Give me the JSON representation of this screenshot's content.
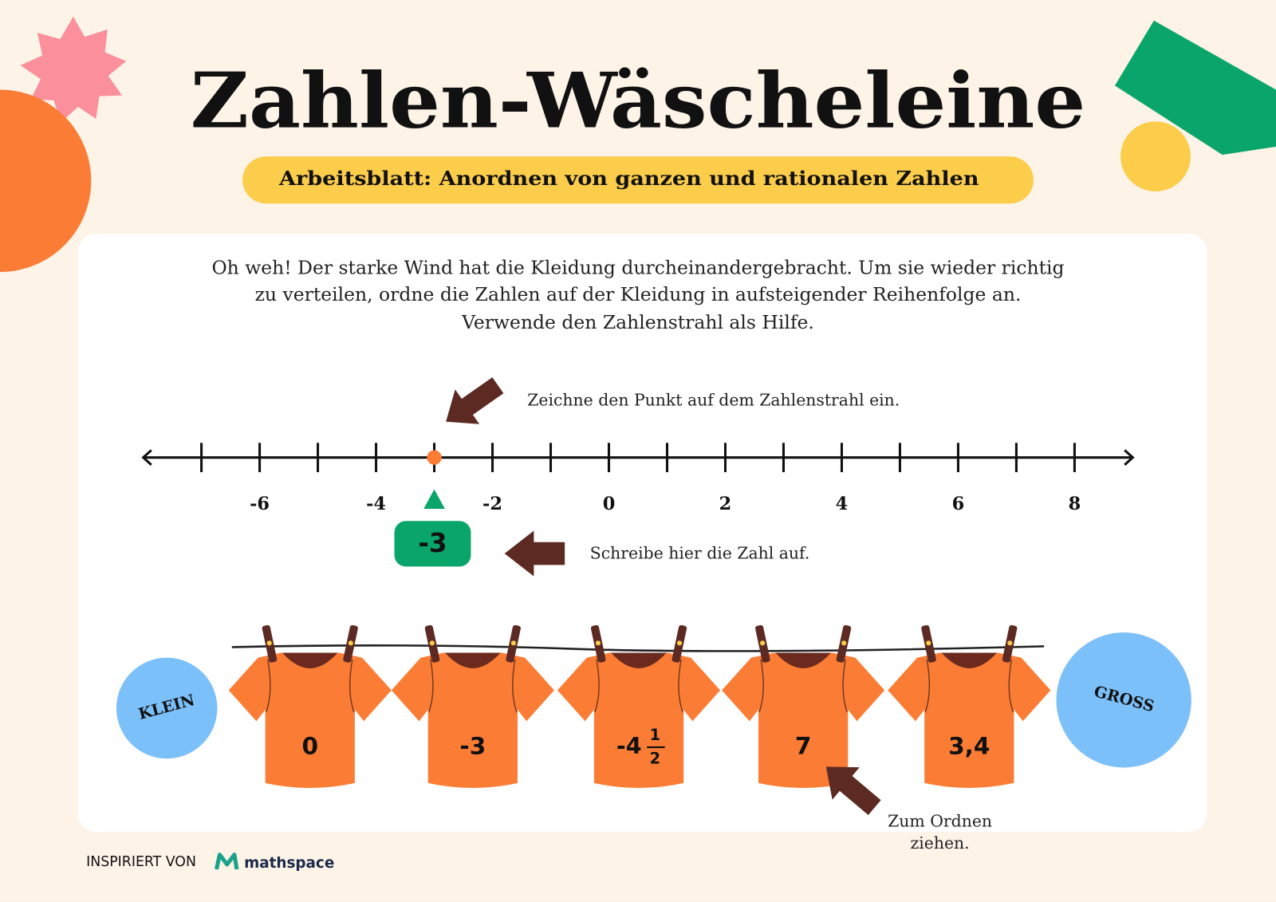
{
  "header": {
    "title": "Zahlen-Wäscheleine",
    "subtitle": "Arbeitsblatt: Anordnen von ganzen und rationalen Zahlen"
  },
  "instructions": [
    "Oh weh! Der starke Wind hat die Kleidung durcheinandergebracht. Um sie wieder richtig",
    "zu verteilen, ordne die Zahlen auf der Kleidung in aufsteigender Reihenfolge an.",
    "Verwende den Zahlenstrahl als Hilfe."
  ],
  "number_line": {
    "hint": "Zeichne den Punkt auf dem Zahlenstrahl ein.",
    "xlim": [
      -8,
      9
    ],
    "ticks": [
      -7,
      -6,
      -5,
      -4,
      -3,
      -2,
      -1,
      0,
      1,
      2,
      3,
      4,
      5,
      6,
      7,
      8
    ],
    "labeled_ticks": [
      -6,
      -4,
      -2,
      0,
      2,
      4,
      6,
      8
    ],
    "point": -3,
    "answer_hint": "Schreibe hier die Zahl auf."
  },
  "clothesline": {
    "start_label": "KLEIN",
    "end_label": "GROSS",
    "shirts": [
      {
        "label": "0"
      },
      {
        "label": "-3"
      },
      {
        "whole": "-4",
        "numerator": "1",
        "denominator": "2"
      },
      {
        "label": "7"
      },
      {
        "label": "3,4"
      }
    ],
    "drag_hint": [
      "Zum Ordnen",
      "ziehen."
    ]
  },
  "footer": {
    "credit": "INSPIRIERT VON",
    "brand": "mathspace"
  }
}
